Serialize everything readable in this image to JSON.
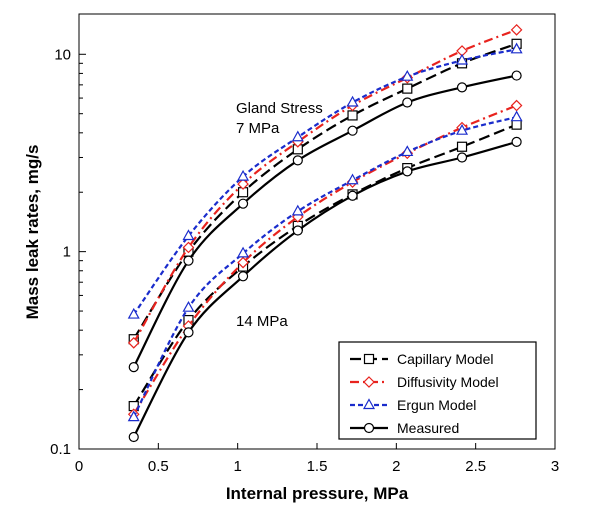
{
  "chart_data": {
    "type": "line",
    "xlabel": "Internal pressure, MPa",
    "ylabel": "Mass leak rates, mg/s",
    "xlim": [
      0,
      3
    ],
    "ylim": [
      0.1,
      16
    ],
    "y_scale": "log",
    "x_ticks": [
      "0",
      "0.5",
      "1",
      "1.5",
      "2",
      "2.5",
      "3"
    ],
    "y_ticks": [
      "0.1",
      "1",
      "10"
    ],
    "grid": false,
    "legend_position": "bottom-right",
    "annotations": [
      {
        "lines": [
          "Gland Stress",
          "7 MPa"
        ]
      },
      {
        "lines": [
          "14 MPa"
        ]
      }
    ],
    "x": [
      0.345,
      0.69,
      1.034,
      1.379,
      1.724,
      2.069,
      2.414,
      2.758
    ],
    "series": [
      {
        "name": "Capillary Model",
        "color": "#000000",
        "marker": "square",
        "dash": "long-dash",
        "groups": {
          "7 MPa": [
            0.36,
            1.0,
            2.0,
            3.3,
            4.9,
            6.7,
            9.0,
            11.3
          ],
          "14 MPa": [
            0.165,
            0.45,
            0.84,
            1.35,
            1.95,
            2.65,
            3.4,
            4.4
          ]
        }
      },
      {
        "name": "Diffusivity Model",
        "color": "#e8231e",
        "marker": "diamond",
        "dash": "dash-dot",
        "groups": {
          "7 MPa": [
            0.345,
            1.05,
            2.2,
            3.6,
            5.5,
            7.6,
            10.4,
            13.3
          ],
          "14 MPa": [
            0.15,
            0.42,
            0.88,
            1.5,
            2.25,
            3.15,
            4.25,
            5.5
          ]
        }
      },
      {
        "name": "Ergun Model",
        "color": "#1a2ccc",
        "marker": "triangle",
        "dash": "short-dash",
        "groups": {
          "7 MPa": [
            0.48,
            1.2,
            2.4,
            3.8,
            5.7,
            7.7,
            9.3,
            10.6
          ],
          "14 MPa": [
            0.145,
            0.52,
            0.98,
            1.6,
            2.3,
            3.2,
            4.1,
            4.8
          ]
        }
      },
      {
        "name": "Measured",
        "color": "#000000",
        "marker": "circle",
        "dash": "solid",
        "groups": {
          "7 MPa": [
            0.26,
            0.9,
            1.75,
            2.9,
            4.1,
            5.7,
            6.8,
            7.8
          ],
          "14 MPa": [
            0.115,
            0.39,
            0.75,
            1.28,
            1.92,
            2.55,
            3.0,
            3.6
          ]
        }
      }
    ]
  }
}
